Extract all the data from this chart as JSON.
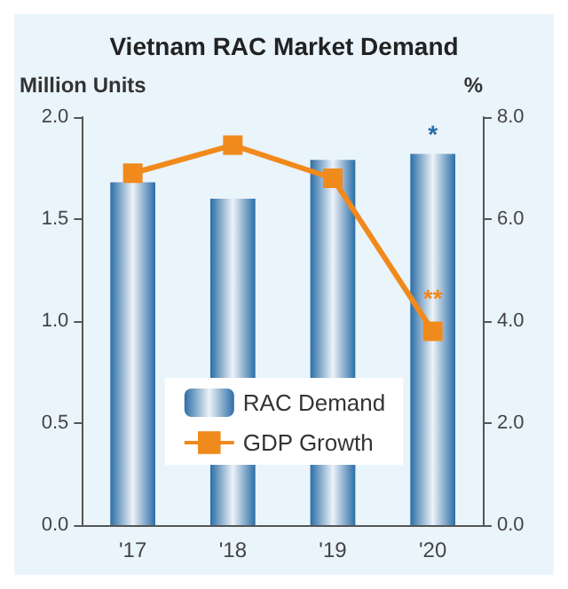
{
  "chart_data": {
    "type": "bar",
    "title": "Vietnam RAC Market Demand",
    "ylabel": "Million Units",
    "y2label": "%",
    "categories": [
      "'17",
      "'18",
      "'19",
      "'20"
    ],
    "series": [
      {
        "name": "RAC Demand",
        "color": "#2b6ea6",
        "values": [
          1.68,
          1.6,
          1.79,
          1.82
        ]
      },
      {
        "name": "GDP Growth",
        "type": "line",
        "axis": "y2",
        "color": "#f08a1c",
        "values": [
          6.9,
          7.45,
          6.8,
          3.8
        ]
      }
    ],
    "ylim": [
      0,
      2
    ],
    "yticks": [
      {
        "value": 0,
        "label": "0.0"
      },
      {
        "value": 0.5,
        "label": "0.5"
      },
      {
        "value": 1,
        "label": "1.0"
      },
      {
        "value": 1.5,
        "label": "1.5"
      },
      {
        "value": 2,
        "label": "2.0"
      }
    ],
    "y2lim": [
      0,
      8
    ],
    "y2ticks": [
      {
        "value": 0,
        "label": "0.0"
      },
      {
        "value": 2,
        "label": "2.0"
      },
      {
        "value": 4,
        "label": "4.0"
      },
      {
        "value": 6,
        "label": "6.0"
      },
      {
        "value": 8,
        "label": "8.0"
      }
    ],
    "annotations": [
      "*",
      "**"
    ],
    "legend": "bottom",
    "marker": "square",
    "grid": false
  }
}
